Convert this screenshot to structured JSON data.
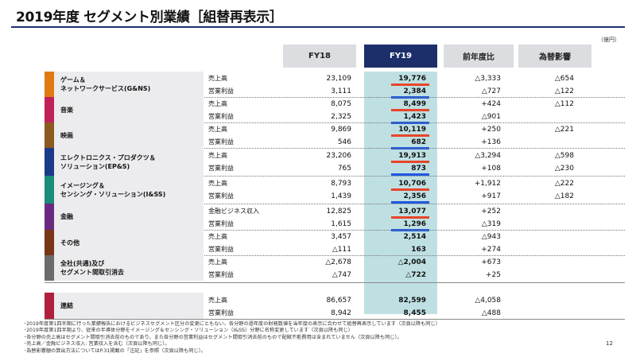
{
  "title": "2019年度 セグメント別業績［組替再表示］",
  "unit": "（億円）",
  "headers": {
    "fy18": "FY18",
    "fy19": "FY19",
    "yoy": "前年度比",
    "fx": "為替影響"
  },
  "segments": [
    {
      "name": "ゲーム＆\nネットワークサービス(G&NS)",
      "color": "#e07b12",
      "rows": [
        {
          "label": "売上高",
          "fy18": "23,109",
          "fy19": "19,776",
          "diff": "△3,333",
          "fx": "△654"
        },
        {
          "label": "営業利益",
          "fy18": "3,111",
          "fy19": "2,384",
          "diff": "△727",
          "fx": "△122"
        }
      ]
    },
    {
      "name": "音楽",
      "color": "#c2205a",
      "rows": [
        {
          "label": "売上高",
          "fy18": "8,075",
          "fy19": "8,499",
          "diff": "+424",
          "fx": "△112"
        },
        {
          "label": "営業利益",
          "fy18": "2,325",
          "fy19": "1,423",
          "diff": "△901",
          "fx": ""
        }
      ]
    },
    {
      "name": "映画",
      "color": "#8c5a1e",
      "rows": [
        {
          "label": "売上高",
          "fy18": "9,869",
          "fy19": "10,119",
          "diff": "+250",
          "fx": "△221"
        },
        {
          "label": "営業利益",
          "fy18": "546",
          "fy19": "682",
          "diff": "+136",
          "fx": ""
        }
      ]
    },
    {
      "name": "エレクトロニクス・プロダクツ＆\nソリューション(EP&S)",
      "color": "#1c3a8a",
      "rows": [
        {
          "label": "売上高",
          "fy18": "23,206",
          "fy19": "19,913",
          "diff": "△3,294",
          "fx": "△598"
        },
        {
          "label": "営業利益",
          "fy18": "765",
          "fy19": "873",
          "diff": "+108",
          "fx": "△230"
        }
      ]
    },
    {
      "name": "イメージング＆\nセンシング・ソリューション(I&SS)",
      "color": "#1a8c7a",
      "rows": [
        {
          "label": "売上高",
          "fy18": "8,793",
          "fy19": "10,706",
          "diff": "+1,912",
          "fx": "△222"
        },
        {
          "label": "営業利益",
          "fy18": "1,439",
          "fy19": "2,356",
          "diff": "+917",
          "fx": "△182"
        }
      ]
    },
    {
      "name": "金融",
      "color": "#6a2a82",
      "rows": [
        {
          "label": "金融ビジネス収入",
          "fy18": "12,825",
          "fy19": "13,077",
          "diff": "+252",
          "fx": ""
        },
        {
          "label": "営業利益",
          "fy18": "1,615",
          "fy19": "1,296",
          "diff": "△319",
          "fx": ""
        }
      ]
    },
    {
      "name": "その他",
      "color": "#7a3418",
      "rows": [
        {
          "label": "売上高",
          "fy18": "3,457",
          "fy19": "2,514",
          "diff": "△943",
          "fx": ""
        },
        {
          "label": "営業利益",
          "fy18": "△111",
          "fy19": "163",
          "diff": "+274",
          "fx": ""
        }
      ]
    },
    {
      "name": "全社(共通)及び\nセグメント間取引消去",
      "color": "#6b6b6b",
      "rows": [
        {
          "label": "売上高",
          "fy18": "△2,678",
          "fy19": "△2,004",
          "diff": "+673",
          "fx": ""
        },
        {
          "label": "営業利益",
          "fy18": "△747",
          "fy19": "△722",
          "diff": "+25",
          "fx": ""
        }
      ]
    },
    {
      "name": "連結",
      "color": "#b0203c",
      "rows": [
        {
          "label": "売上高",
          "fy18": "86,657",
          "fy19": "82,599",
          "diff": "△4,058",
          "fx": ""
        },
        {
          "label": "営業利益",
          "fy18": "8,942",
          "fy19": "8,455",
          "diff": "△488",
          "fx": ""
        }
      ]
    }
  ],
  "notes": [
    "･2019年度第1四半期に行った業績報告におけるビジネスセグメント区分の変更にともない、各分野の過年度の財務数値を当年度の表示に合わせて組替再表示しています（次頁以降も同じ）",
    "･2019年度第1四半期より、従来の半導体分野をイメージング＆センシング・ソリューション（I&SS）分野に名称変更しています（次頁以降も同じ）",
    "･各分野の売上高はセグメント間取引消去前のものであり、また各分野の営業利益はセグメント間取引消去前のもので配賦不能費用は含まれていません（次頁以降も同じ）。",
    "･売上高／金融ビジネス収入: 営業収入を含む（次頁以降も同じ）。",
    "･為替影響額の算出方法についてはP.31掲載の「注記」を参照（次頁以降も同じ）。"
  ],
  "page_number": "12"
}
